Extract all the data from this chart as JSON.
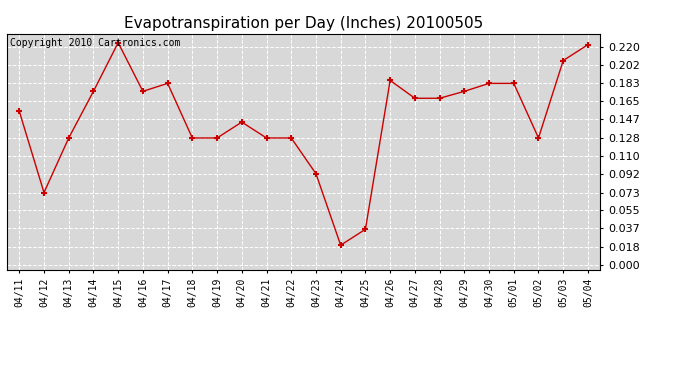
{
  "title": "Evapotranspiration per Day (Inches) 20100505",
  "copyright_text": "Copyright 2010 Cartronics.com",
  "dates": [
    "04/11",
    "04/12",
    "04/13",
    "04/14",
    "04/15",
    "04/16",
    "04/17",
    "04/18",
    "04/19",
    "04/20",
    "04/21",
    "04/22",
    "04/23",
    "04/24",
    "04/25",
    "04/26",
    "04/27",
    "04/28",
    "04/29",
    "04/30",
    "05/01",
    "05/02",
    "05/03",
    "05/04"
  ],
  "values": [
    0.155,
    0.073,
    0.128,
    0.175,
    0.224,
    0.175,
    0.183,
    0.128,
    0.128,
    0.144,
    0.128,
    0.128,
    0.092,
    0.02,
    0.036,
    0.186,
    0.168,
    0.168,
    0.175,
    0.183,
    0.183,
    0.128,
    0.206,
    0.222
  ],
  "line_color": "#cc0000",
  "marker": "+",
  "marker_size": 5,
  "marker_linewidth": 1.5,
  "yticks": [
    0.0,
    0.018,
    0.037,
    0.055,
    0.073,
    0.092,
    0.11,
    0.128,
    0.147,
    0.165,
    0.183,
    0.202,
    0.22
  ],
  "ylim": [
    -0.005,
    0.233
  ],
  "background_color": "#d8d8d8",
  "grid_color": "#ffffff",
  "title_fontsize": 11,
  "copyright_fontsize": 7,
  "tick_fontsize": 7,
  "ytick_fontsize": 8
}
